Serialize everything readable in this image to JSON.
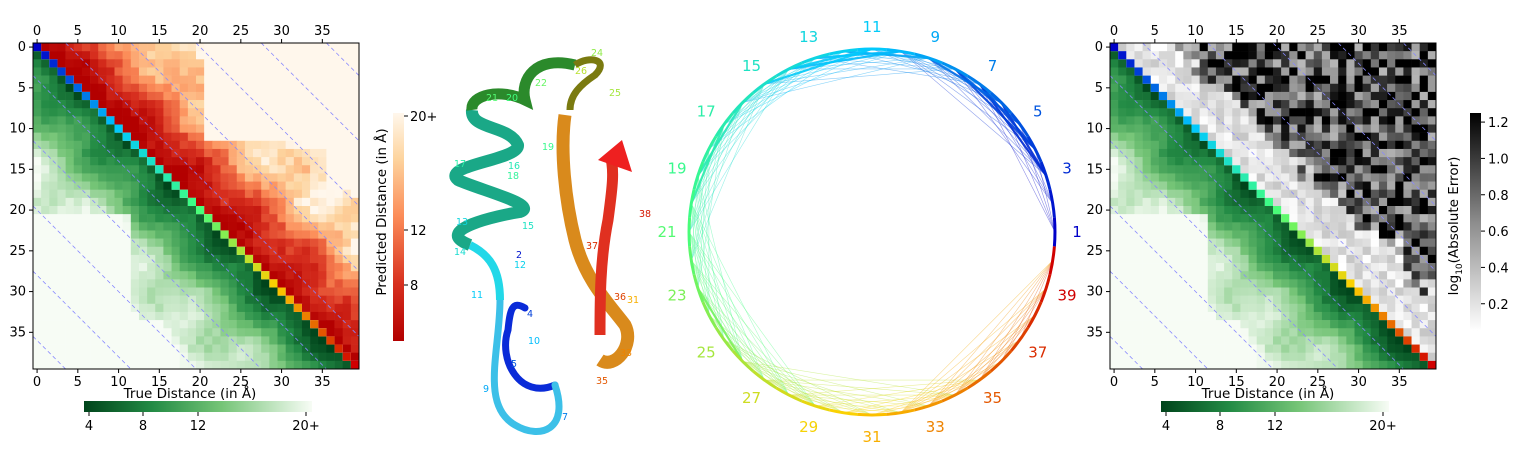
{
  "chart_data": [
    {
      "type": "heatmap",
      "panel": "left",
      "matrix_size": 40,
      "upper_triangle": "Predicted Distance (in Å)",
      "lower_triangle": "True Distance (in Å)",
      "xlabel": "True Distance (in Å)",
      "ylabel": "Predicted Distance (in Å)",
      "axis_ticks": [
        "0",
        "5",
        "10",
        "15",
        "20",
        "25",
        "30",
        "35"
      ],
      "colorbar_predicted": {
        "ticks": [
          "8",
          "12",
          "20+"
        ],
        "colors": [
          "#b30000",
          "#e34a33",
          "#fdbb84",
          "#fff7ec"
        ]
      },
      "colorbar_true": {
        "ticks": [
          "4",
          "8",
          "12",
          "20+"
        ],
        "colors": [
          "#00441b",
          "#238b45",
          "#74c476",
          "#f7fcf5"
        ]
      }
    },
    {
      "type": "other",
      "panel": "ribbon",
      "residue_labels": [
        "2",
        "4",
        "5",
        "7",
        "9",
        "10",
        "11",
        "12",
        "13",
        "14",
        "15",
        "16",
        "17",
        "18",
        "19",
        "20",
        "21",
        "22",
        "24",
        "25",
        "26",
        "31",
        "33",
        "35",
        "36",
        "37",
        "38"
      ]
    },
    {
      "type": "other",
      "panel": "circle",
      "residue_labels": [
        "1",
        "3",
        "5",
        "7",
        "9",
        "11",
        "13",
        "15",
        "17",
        "19",
        "21",
        "23",
        "25",
        "27",
        "29",
        "31",
        "33",
        "35",
        "37",
        "39"
      ]
    },
    {
      "type": "heatmap",
      "panel": "right",
      "matrix_size": 40,
      "upper_triangle": "log10(Absolute Error)",
      "lower_triangle": "True Distance (in Å)",
      "xlabel": "True Distance (in Å)",
      "ylabel_base": "log",
      "ylabel_sub": "10",
      "ylabel_rest": "(Absolute Error)",
      "axis_ticks": [
        "0",
        "5",
        "10",
        "15",
        "20",
        "25",
        "30",
        "35"
      ],
      "colorbar_error": {
        "ticks": [
          "0.2",
          "0.4",
          "0.6",
          "0.8",
          "1.0",
          "1.2"
        ],
        "range": [
          0.05,
          1.25
        ]
      },
      "colorbar_true": {
        "ticks": [
          "4",
          "8",
          "12",
          "20+"
        ]
      }
    }
  ]
}
